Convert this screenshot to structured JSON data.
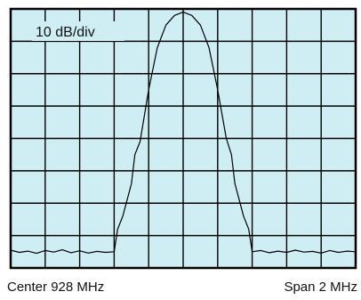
{
  "colors": {
    "screen_background": "#cfeef4",
    "grid": "#000000",
    "trace": "#000000"
  },
  "chart_data": {
    "type": "line",
    "scale_label": "10 dB/div",
    "center_label": "Center 928 MHz",
    "span_label": "Span 2 MHz",
    "grid": true,
    "divisions": {
      "x": 10,
      "y": 8
    },
    "x_unit": "MHz",
    "y_unit": "dB",
    "xlim": [
      927,
      929
    ],
    "ylim": [
      -80,
      0
    ],
    "series": [
      {
        "x": [
          927.0,
          927.05,
          927.1,
          927.15,
          927.2,
          927.25,
          927.3,
          927.35,
          927.4,
          927.45,
          927.5,
          927.55,
          927.6,
          927.62,
          927.65,
          927.7,
          927.72,
          927.75,
          927.8,
          927.85,
          927.9,
          927.95,
          928.0,
          928.05,
          928.1,
          928.15,
          928.2,
          928.25,
          928.28,
          928.3,
          928.35,
          928.38,
          928.4,
          928.45,
          928.5,
          928.55,
          928.6,
          928.65,
          928.7,
          928.75,
          928.8,
          928.85,
          928.9,
          928.95,
          929.0
        ],
        "y": [
          -74.5,
          -75.2,
          -74.8,
          -75.5,
          -74.6,
          -75.1,
          -74.4,
          -75.3,
          -74.7,
          -75.4,
          -74.9,
          -75.2,
          -75.0,
          -68.0,
          -64.0,
          -54.0,
          -45.0,
          -41.0,
          -25.0,
          -12.0,
          -5.0,
          -2.0,
          -1.0,
          -2.0,
          -5.0,
          -12.0,
          -25.0,
          -40.0,
          -45.0,
          -54.0,
          -64.0,
          -68.0,
          -75.0,
          -74.6,
          -75.3,
          -74.8,
          -75.2,
          -74.5,
          -75.1,
          -74.9,
          -75.4,
          -74.6,
          -75.2,
          -74.8,
          -75.0
        ]
      }
    ]
  }
}
